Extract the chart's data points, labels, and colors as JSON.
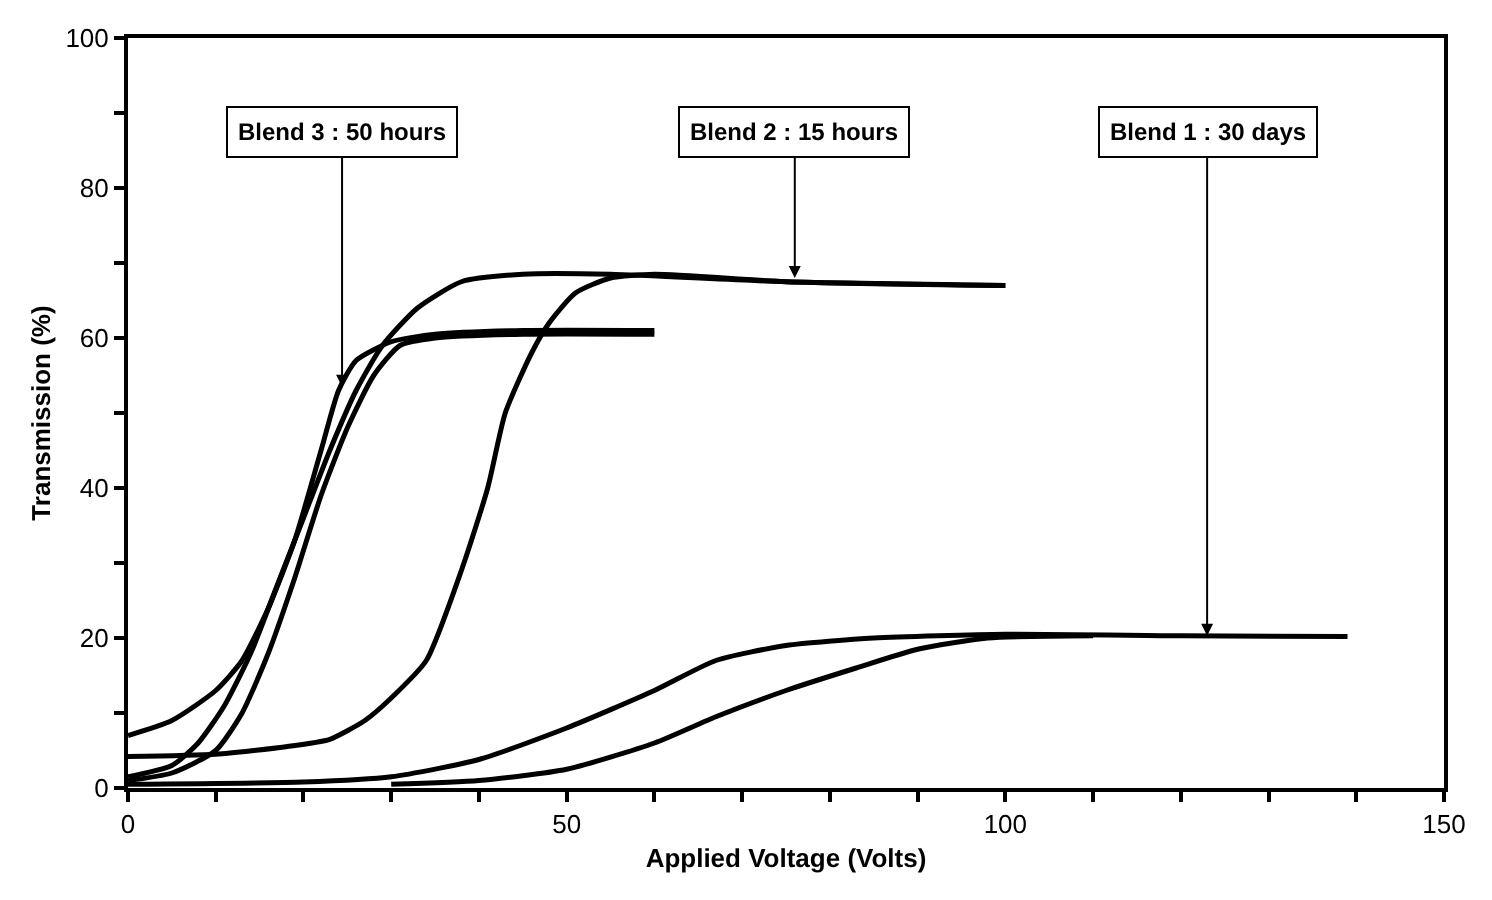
{
  "chart_data": {
    "type": "line",
    "xlabel": "Applied Voltage (Volts)",
    "ylabel": "Transmission (%)",
    "xlim": [
      0,
      150
    ],
    "ylim": [
      0,
      100
    ],
    "xticks": [
      0,
      {
        "value": 10,
        "label": null
      },
      {
        "value": 20,
        "label": null
      },
      {
        "value": 30,
        "label": null
      },
      {
        "value": 40,
        "label": null
      },
      50,
      {
        "value": 60,
        "label": null
      },
      {
        "value": 70,
        "label": null
      },
      {
        "value": 80,
        "label": null
      },
      {
        "value": 90,
        "label": null
      },
      100,
      {
        "value": 110,
        "label": null
      },
      {
        "value": 120,
        "label": null
      },
      {
        "value": 130,
        "label": null
      },
      {
        "value": 140,
        "label": null
      },
      150
    ],
    "yticks": [
      0,
      {
        "value": 10,
        "label": null
      },
      20,
      {
        "value": 30,
        "label": null
      },
      40,
      {
        "value": 50,
        "label": null
      },
      60,
      {
        "value": 70,
        "label": null
      },
      80,
      {
        "value": 90,
        "label": null
      },
      100
    ],
    "marker": "none",
    "line_style": "solid",
    "series": [
      {
        "color": "#000000",
        "x": [
          0,
          5,
          10,
          13,
          16,
          19,
          22,
          24,
          26,
          30,
          35,
          45,
          60
        ],
        "values": [
          7,
          9,
          13,
          17,
          24,
          33,
          45,
          53,
          57,
          59.5,
          60.5,
          61,
          61
        ]
      },
      {
        "color": "#000000",
        "x": [
          0,
          5,
          10,
          13,
          16,
          19,
          22,
          25,
          28,
          31,
          35,
          45,
          60
        ],
        "values": [
          1,
          2,
          5,
          10,
          18,
          28,
          39,
          48,
          55,
          59,
          60,
          60.5,
          60.5
        ]
      },
      {
        "color": "#000000",
        "x": [
          0,
          5,
          8,
          11,
          14,
          17,
          20,
          23,
          26,
          29,
          33,
          38,
          45,
          55,
          75,
          100
        ],
        "values": [
          1.5,
          3,
          6,
          11,
          18,
          27,
          36,
          45,
          53,
          59,
          64,
          67.5,
          68.5,
          68.5,
          67.5,
          67
        ]
      },
      {
        "color": "#000000",
        "x": [
          0,
          10,
          18,
          23,
          27,
          30,
          34,
          38,
          41,
          43,
          46,
          48,
          51,
          55,
          60,
          75,
          100
        ],
        "values": [
          4.2,
          4.5,
          5.5,
          6.5,
          9,
          12,
          17,
          29,
          40,
          50,
          58,
          62,
          66,
          68,
          68.5,
          67.5,
          67
        ]
      },
      {
        "color": "#000000",
        "x": [
          0,
          20,
          30,
          40,
          50,
          60,
          67,
          75,
          85,
          100,
          120,
          139
        ],
        "values": [
          0.5,
          0.8,
          1.5,
          3.8,
          8,
          13,
          17,
          19,
          20,
          20.5,
          20.3,
          20.2
        ]
      },
      {
        "color": "#000000",
        "x": [
          30,
          40,
          50,
          60,
          67,
          75,
          83,
          90,
          98,
          110
        ],
        "values": [
          0.5,
          1,
          2.5,
          6,
          9.5,
          13,
          16,
          18.5,
          20,
          20.3
        ]
      }
    ],
    "annotations": [
      {
        "text": "Blend 3 : 50 hours",
        "x": 24.4,
        "y": 53.5
      },
      {
        "text": "Blend 2 : 15 hours",
        "x": 76,
        "y": 68
      },
      {
        "text": "Blend 1 : 30 days",
        "x": 123,
        "y": 20.3
      }
    ]
  }
}
